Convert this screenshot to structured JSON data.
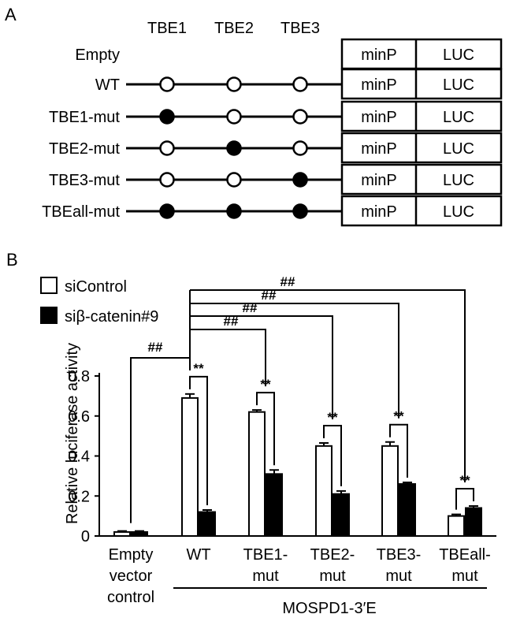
{
  "panel_a": {
    "letter": "A",
    "site_headers": [
      "TBE1",
      "TBE2",
      "TBE3"
    ],
    "constructs": [
      {
        "name": "Empty",
        "has_line": false,
        "sites": [],
        "box": [
          "minP",
          "LUC"
        ]
      },
      {
        "name": "WT",
        "has_line": true,
        "sites": [
          "open",
          "open",
          "open"
        ],
        "box": [
          "minP",
          "LUC"
        ]
      },
      {
        "name": "TBE1-mut",
        "has_line": true,
        "sites": [
          "filled",
          "open",
          "open"
        ],
        "box": [
          "minP",
          "LUC"
        ]
      },
      {
        "name": "TBE2-mut",
        "has_line": true,
        "sites": [
          "open",
          "filled",
          "open"
        ],
        "box": [
          "minP",
          "LUC"
        ]
      },
      {
        "name": "TBE3-mut",
        "has_line": true,
        "sites": [
          "open",
          "open",
          "filled"
        ],
        "box": [
          "minP",
          "LUC"
        ]
      },
      {
        "name": "TBEall-mut",
        "has_line": true,
        "sites": [
          "filled",
          "filled",
          "filled"
        ],
        "box": [
          "minP",
          "LUC"
        ]
      }
    ]
  },
  "chart_data": {
    "panel_letter": "B",
    "type": "bar",
    "categories": [
      [
        "Empty",
        "vector",
        "control"
      ],
      [
        "WT"
      ],
      [
        "TBE1-",
        "mut"
      ],
      [
        "TBE2-",
        "mut"
      ],
      [
        "TBE3-",
        "mut"
      ],
      [
        "TBEall-",
        "mut"
      ]
    ],
    "series": [
      {
        "name": "siControl",
        "color": "#ffffff",
        "values": [
          0.02,
          0.69,
          0.62,
          0.45,
          0.45,
          0.1
        ],
        "errors": [
          0.005,
          0.02,
          0.01,
          0.015,
          0.02,
          0.008
        ]
      },
      {
        "name": "siβ-catenin#9",
        "color": "#000000",
        "values": [
          0.02,
          0.12,
          0.31,
          0.21,
          0.26,
          0.14
        ],
        "errors": [
          0.005,
          0.01,
          0.02,
          0.015,
          0.008,
          0.01
        ]
      }
    ],
    "ylabel": "Relative luciferase activity",
    "ylim": [
      0,
      0.8
    ],
    "yticks": [
      "0",
      "0.2",
      "0.4",
      "0.6",
      "0.8"
    ],
    "within_group_sig": "**",
    "within_group_sig_categories": [
      1,
      2,
      3,
      4,
      5
    ],
    "between_group_sig": "##",
    "group_label": "MOSPD1-3′E",
    "legend_position": "top-left"
  }
}
